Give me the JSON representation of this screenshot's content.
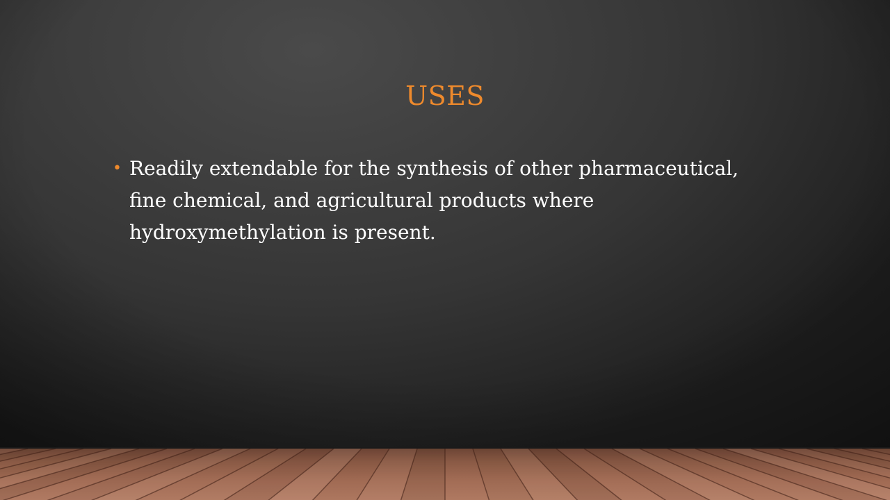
{
  "slide": {
    "title": "USES",
    "bullets": [
      {
        "lines": [
          "Readily extendable for the synthesis of  other pharmaceutical,",
          "fine chemical, and agricultural products where",
          "hydroxymethylation is present."
        ]
      }
    ]
  },
  "colors": {
    "title": "#ef8a2c",
    "bullet_marker": "#ef8a2c",
    "body_text": "#ffffff",
    "background": "#3e3e3e",
    "floor": "#a26c55"
  },
  "icons": {
    "bullet": "bullet-dot"
  }
}
